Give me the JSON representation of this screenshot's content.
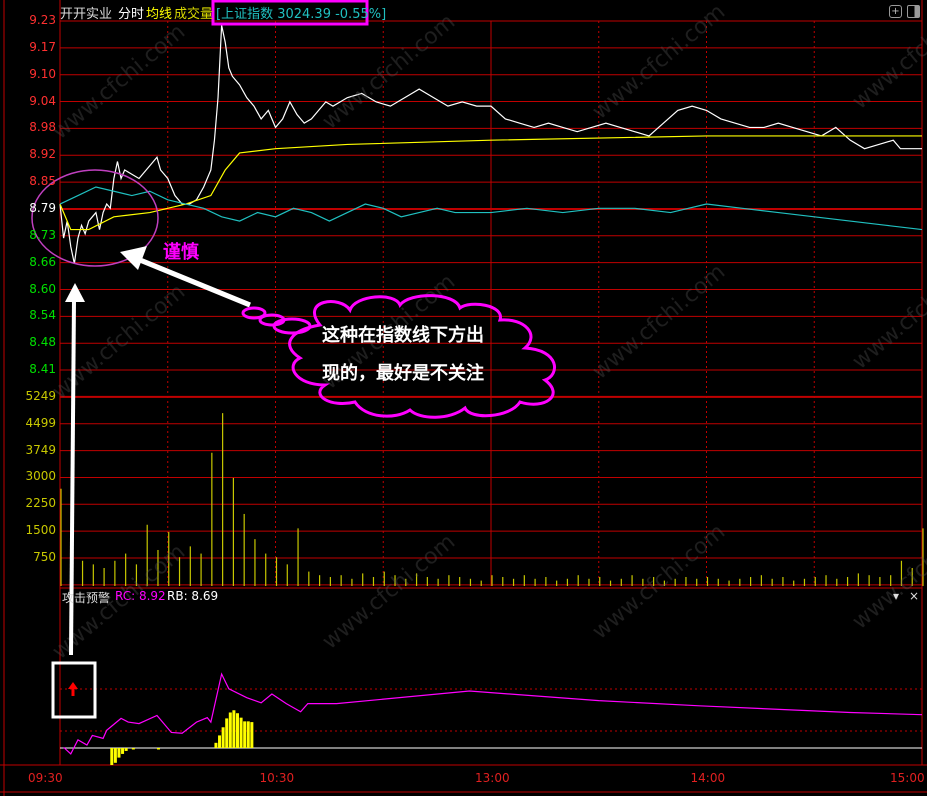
{
  "header": {
    "stock_name": "开开实业",
    "mode": "分时",
    "avg_label": "均线",
    "volume_label": "成交量",
    "index_info": "[上证指数 3024.39 -0.55%]",
    "icons": [
      "zoom-in-icon",
      "panel-toggle-icon"
    ]
  },
  "indicator": {
    "name": "攻击预警",
    "rc": "RC: 8.92",
    "rb": "RB: 8.69",
    "dropdown_icon": "▾",
    "close_icon": "×"
  },
  "annotations": {
    "caution": "谨慎",
    "cloud_line1": "这种在指数线下方出",
    "cloud_line2": "现的，最好是不关注",
    "watermark": "www.cfchi.com"
  },
  "colors": {
    "price": "#ffffff",
    "average": "#ffff00",
    "index": "#20c0c0",
    "volume": "#c8c800",
    "grid": "#c00000",
    "up": "#ff3030",
    "down": "#00e000",
    "indicator_line": "#ff00ff",
    "annotation": "#ff00ff"
  },
  "chart_data": {
    "type": "line",
    "x_unit": "minutes since 09:30 (trading time)",
    "time_ticks": [
      {
        "m": 0,
        "label": "09:30"
      },
      {
        "m": 60,
        "label": "10:30"
      },
      {
        "m": 120,
        "label": "13:00"
      },
      {
        "m": 180,
        "label": "14:00"
      },
      {
        "m": 240,
        "label": "15:00"
      }
    ],
    "price_axis": {
      "ticks": [
        "9.23",
        "9.17",
        "9.10",
        "9.04",
        "8.98",
        "8.92",
        "8.85",
        "8.79",
        "8.73",
        "8.66",
        "8.60",
        "8.54",
        "8.48",
        "8.41"
      ],
      "prev_close": 8.79,
      "ylim": [
        8.41,
        9.23
      ]
    },
    "volume_axis": {
      "ticks": [
        "5249",
        "4499",
        "3749",
        "3000",
        "2250",
        "1500",
        "750"
      ],
      "ylim": [
        0,
        5249
      ]
    },
    "series": [
      {
        "key": "price",
        "points": [
          [
            0,
            8.8
          ],
          [
            1,
            8.72
          ],
          [
            2,
            8.76
          ],
          [
            3,
            8.7
          ],
          [
            4,
            8.66
          ],
          [
            5,
            8.72
          ],
          [
            6,
            8.75
          ],
          [
            7,
            8.73
          ],
          [
            8,
            8.76
          ],
          [
            9,
            8.77
          ],
          [
            10,
            8.78
          ],
          [
            11,
            8.74
          ],
          [
            12,
            8.78
          ],
          [
            13,
            8.8
          ],
          [
            14,
            8.79
          ],
          [
            15,
            8.86
          ],
          [
            16,
            8.9
          ],
          [
            17,
            8.86
          ],
          [
            18,
            8.88
          ],
          [
            20,
            8.87
          ],
          [
            22,
            8.86
          ],
          [
            24,
            8.88
          ],
          [
            26,
            8.9
          ],
          [
            27,
            8.91
          ],
          [
            28,
            8.88
          ],
          [
            30,
            8.86
          ],
          [
            32,
            8.82
          ],
          [
            34,
            8.8
          ],
          [
            36,
            8.8
          ],
          [
            38,
            8.81
          ],
          [
            40,
            8.84
          ],
          [
            42,
            8.88
          ],
          [
            43,
            8.95
          ],
          [
            44,
            9.05
          ],
          [
            45,
            9.22
          ],
          [
            46,
            9.18
          ],
          [
            47,
            9.12
          ],
          [
            48,
            9.1
          ],
          [
            50,
            9.08
          ],
          [
            52,
            9.05
          ],
          [
            54,
            9.03
          ],
          [
            56,
            9.0
          ],
          [
            58,
            9.02
          ],
          [
            60,
            8.98
          ],
          [
            62,
            9.0
          ],
          [
            64,
            9.04
          ],
          [
            66,
            9.01
          ],
          [
            68,
            8.99
          ],
          [
            70,
            9.0
          ],
          [
            72,
            9.02
          ],
          [
            74,
            9.04
          ],
          [
            76,
            9.03
          ],
          [
            80,
            9.05
          ],
          [
            84,
            9.06
          ],
          [
            88,
            9.04
          ],
          [
            92,
            9.03
          ],
          [
            96,
            9.05
          ],
          [
            100,
            9.07
          ],
          [
            104,
            9.05
          ],
          [
            108,
            9.03
          ],
          [
            112,
            9.04
          ],
          [
            116,
            9.03
          ],
          [
            120,
            9.03
          ],
          [
            124,
            9.0
          ],
          [
            128,
            8.99
          ],
          [
            132,
            8.98
          ],
          [
            136,
            8.99
          ],
          [
            140,
            8.98
          ],
          [
            144,
            8.97
          ],
          [
            148,
            8.98
          ],
          [
            152,
            8.99
          ],
          [
            156,
            8.98
          ],
          [
            160,
            8.97
          ],
          [
            164,
            8.96
          ],
          [
            168,
            8.99
          ],
          [
            172,
            9.02
          ],
          [
            176,
            9.03
          ],
          [
            180,
            9.02
          ],
          [
            184,
            9.0
          ],
          [
            188,
            8.99
          ],
          [
            192,
            8.98
          ],
          [
            196,
            8.98
          ],
          [
            200,
            8.99
          ],
          [
            204,
            8.98
          ],
          [
            208,
            8.97
          ],
          [
            212,
            8.96
          ],
          [
            216,
            8.98
          ],
          [
            220,
            8.95
          ],
          [
            224,
            8.93
          ],
          [
            228,
            8.94
          ],
          [
            232,
            8.95
          ],
          [
            234,
            8.93
          ],
          [
            236,
            8.93
          ],
          [
            240,
            8.93
          ]
        ]
      },
      {
        "key": "average",
        "points": [
          [
            0,
            8.8
          ],
          [
            3,
            8.74
          ],
          [
            8,
            8.74
          ],
          [
            15,
            8.77
          ],
          [
            25,
            8.78
          ],
          [
            35,
            8.8
          ],
          [
            42,
            8.82
          ],
          [
            46,
            8.88
          ],
          [
            50,
            8.92
          ],
          [
            60,
            8.93
          ],
          [
            80,
            8.94
          ],
          [
            120,
            8.95
          ],
          [
            180,
            8.96
          ],
          [
            240,
            8.96
          ]
        ]
      },
      {
        "key": "index",
        "points": [
          [
            0,
            8.8
          ],
          [
            5,
            8.82
          ],
          [
            10,
            8.84
          ],
          [
            15,
            8.83
          ],
          [
            20,
            8.82
          ],
          [
            25,
            8.83
          ],
          [
            30,
            8.81
          ],
          [
            35,
            8.8
          ],
          [
            40,
            8.79
          ],
          [
            45,
            8.77
          ],
          [
            50,
            8.76
          ],
          [
            55,
            8.78
          ],
          [
            60,
            8.77
          ],
          [
            65,
            8.79
          ],
          [
            70,
            8.78
          ],
          [
            75,
            8.76
          ],
          [
            80,
            8.78
          ],
          [
            85,
            8.8
          ],
          [
            90,
            8.79
          ],
          [
            95,
            8.77
          ],
          [
            100,
            8.78
          ],
          [
            105,
            8.79
          ],
          [
            110,
            8.78
          ],
          [
            120,
            8.78
          ],
          [
            130,
            8.79
          ],
          [
            140,
            8.78
          ],
          [
            150,
            8.79
          ],
          [
            160,
            8.79
          ],
          [
            170,
            8.78
          ],
          [
            180,
            8.8
          ],
          [
            190,
            8.79
          ],
          [
            200,
            8.78
          ],
          [
            210,
            8.77
          ],
          [
            220,
            8.76
          ],
          [
            230,
            8.75
          ],
          [
            240,
            8.74
          ]
        ]
      }
    ],
    "volume_step_minutes": 3,
    "volume": [
      2700,
      900,
      700,
      600,
      500,
      700,
      900,
      600,
      1700,
      1000,
      1500,
      800,
      1100,
      900,
      3700,
      4800,
      3000,
      2000,
      1300,
      900,
      800,
      600,
      1600,
      400,
      300,
      250,
      300,
      200,
      350,
      250,
      400,
      300,
      200,
      350,
      250,
      200,
      300,
      250,
      200,
      150,
      300,
      250,
      200,
      300,
      200,
      250,
      150,
      200,
      300,
      200,
      250,
      150,
      200,
      300,
      200,
      250,
      150,
      200,
      250,
      200,
      250,
      200,
      150,
      200,
      250,
      300,
      200,
      250,
      150,
      200,
      250,
      300,
      200,
      250,
      350,
      300,
      250,
      300,
      700,
      500,
      1600
    ],
    "indicator_line": [
      [
        1,
        1
      ],
      [
        3,
        -8
      ],
      [
        5,
        11
      ],
      [
        7.5,
        4
      ],
      [
        9,
        17
      ],
      [
        12,
        13
      ],
      [
        13,
        24
      ],
      [
        17,
        40
      ],
      [
        19,
        35
      ],
      [
        22,
        33
      ],
      [
        27,
        44
      ],
      [
        31,
        21
      ],
      [
        34,
        20
      ],
      [
        38,
        35
      ],
      [
        41,
        41
      ],
      [
        42,
        35
      ],
      [
        45,
        100
      ],
      [
        47,
        80
      ],
      [
        52,
        68
      ],
      [
        56,
        61
      ],
      [
        59,
        73
      ],
      [
        63,
        60
      ],
      [
        67,
        49
      ],
      [
        69,
        60
      ],
      [
        77,
        60
      ],
      [
        114,
        77
      ],
      [
        150,
        64
      ],
      [
        178,
        57
      ],
      [
        220,
        48
      ],
      [
        240,
        45
      ]
    ],
    "indicator_bars": [
      [
        14,
        -23
      ],
      [
        15,
        -20
      ],
      [
        16,
        -13
      ],
      [
        17,
        -8
      ],
      [
        18,
        -4
      ],
      [
        20,
        -2
      ],
      [
        27,
        -2
      ],
      [
        43,
        7
      ],
      [
        44,
        17
      ],
      [
        45,
        28
      ],
      [
        46,
        40
      ],
      [
        47,
        48
      ],
      [
        48,
        51
      ],
      [
        49,
        47
      ],
      [
        50,
        41
      ],
      [
        51,
        36
      ],
      [
        52,
        36
      ],
      [
        53,
        35
      ]
    ]
  }
}
